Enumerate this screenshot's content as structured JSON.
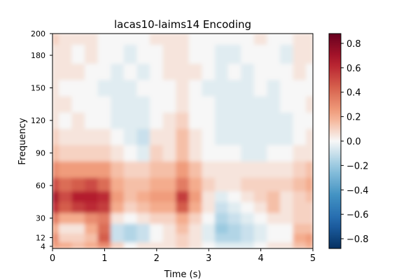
{
  "chart_data": {
    "type": "heatmap",
    "title": "lacas10-laims14 Encoding",
    "xlabel": "Time (s)",
    "ylabel": "Frequency",
    "xlim": [
      0,
      5
    ],
    "ylim": [
      2,
      200
    ],
    "x_ticks": [
      0,
      1,
      2,
      3,
      4,
      5
    ],
    "x_tick_labels": [
      "0",
      "1",
      "2",
      "3",
      "4",
      "5"
    ],
    "y_ticks": [
      4,
      12,
      30,
      60,
      90,
      120,
      150,
      180,
      200
    ],
    "y_tick_labels": [
      "4",
      "12",
      "30",
      "60",
      "90",
      "120",
      "150",
      "180",
      "200"
    ],
    "colorbar": {
      "colormap": "RdBu_r",
      "vmin": -0.88,
      "vmax": 0.88,
      "ticks": [
        -0.8,
        -0.6,
        -0.4,
        -0.2,
        0.0,
        0.2,
        0.4,
        0.6,
        0.8
      ],
      "tick_labels": [
        "−0.8",
        "−0.6",
        "−0.4",
        "−0.2",
        "0.0",
        "0.2",
        "0.4",
        "0.6",
        "0.8"
      ]
    },
    "rows_description": "approximate z values by frequency band",
    "frequencies": [
      4,
      12,
      20,
      30,
      40,
      50,
      60,
      75,
      90,
      105,
      120,
      135,
      150,
      165,
      180,
      200
    ],
    "times": [
      0.0,
      0.25,
      0.5,
      0.75,
      1.0,
      1.25,
      1.5,
      1.75,
      2.0,
      2.25,
      2.5,
      2.75,
      3.0,
      3.25,
      3.5,
      3.75,
      4.0,
      4.25,
      4.5,
      4.75,
      5.0
    ],
    "values": [
      [
        0.25,
        0.2,
        0.15,
        0.2,
        0.3,
        0.1,
        0.0,
        0.05,
        0.05,
        0.05,
        0.1,
        0.05,
        0.0,
        -0.05,
        -0.05,
        -0.05,
        0.0,
        0.05,
        0.05,
        0.15,
        0.2
      ],
      [
        0.3,
        0.1,
        0.1,
        0.15,
        0.45,
        -0.1,
        -0.15,
        -0.1,
        0.0,
        0.05,
        0.1,
        0.05,
        -0.05,
        -0.15,
        -0.15,
        -0.1,
        -0.05,
        0.0,
        0.0,
        0.2,
        0.25
      ],
      [
        0.2,
        0.05,
        0.05,
        0.2,
        0.4,
        -0.1,
        -0.15,
        -0.1,
        0.0,
        0.05,
        0.15,
        0.05,
        -0.05,
        -0.2,
        -0.15,
        -0.1,
        -0.05,
        0.0,
        0.0,
        0.15,
        0.15
      ],
      [
        0.35,
        0.2,
        0.2,
        0.3,
        0.35,
        0.05,
        0.0,
        0.05,
        0.1,
        0.1,
        0.2,
        0.1,
        0.0,
        -0.15,
        -0.1,
        -0.05,
        0.0,
        0.05,
        0.05,
        0.1,
        0.1
      ],
      [
        0.6,
        0.45,
        0.55,
        0.6,
        0.55,
        0.2,
        0.1,
        0.15,
        0.2,
        0.2,
        0.45,
        0.2,
        0.05,
        -0.1,
        -0.05,
        0.0,
        0.05,
        0.15,
        0.05,
        0.1,
        0.1
      ],
      [
        0.7,
        0.5,
        0.65,
        0.65,
        0.6,
        0.25,
        0.15,
        0.2,
        0.25,
        0.25,
        0.55,
        0.25,
        0.05,
        -0.05,
        0.0,
        0.05,
        0.1,
        0.15,
        0.05,
        0.1,
        0.15
      ],
      [
        0.5,
        0.4,
        0.45,
        0.5,
        0.4,
        0.2,
        0.15,
        0.15,
        0.2,
        0.2,
        0.35,
        0.2,
        0.1,
        0.05,
        0.05,
        0.1,
        0.1,
        0.1,
        0.1,
        0.15,
        0.2
      ],
      [
        0.3,
        0.25,
        0.25,
        0.25,
        0.25,
        0.15,
        0.1,
        0.1,
        0.15,
        0.15,
        0.25,
        0.15,
        0.05,
        0.05,
        0.05,
        0.05,
        0.05,
        0.05,
        0.05,
        0.1,
        0.15
      ],
      [
        0.15,
        0.1,
        0.1,
        0.1,
        0.1,
        0.05,
        0.0,
        -0.05,
        0.1,
        0.05,
        0.15,
        0.05,
        0.0,
        0.0,
        0.0,
        -0.05,
        -0.05,
        0.0,
        0.0,
        0.05,
        0.05
      ],
      [
        0.1,
        0.05,
        0.05,
        0.05,
        0.05,
        0.0,
        -0.05,
        -0.1,
        0.05,
        0.05,
        0.15,
        0.05,
        0.0,
        -0.05,
        -0.05,
        -0.05,
        -0.05,
        -0.05,
        -0.05,
        0.0,
        0.05
      ],
      [
        0.05,
        0.0,
        0.05,
        0.0,
        0.0,
        -0.05,
        -0.05,
        -0.05,
        0.0,
        0.05,
        0.1,
        0.0,
        0.0,
        -0.05,
        -0.05,
        -0.05,
        -0.05,
        -0.05,
        -0.05,
        0.0,
        0.0
      ],
      [
        0.05,
        0.05,
        0.0,
        0.0,
        0.0,
        -0.05,
        -0.05,
        -0.05,
        0.0,
        0.0,
        0.05,
        0.0,
        0.0,
        -0.05,
        -0.05,
        -0.05,
        -0.05,
        -0.05,
        0.0,
        0.0,
        0.05
      ],
      [
        0.05,
        0.0,
        0.0,
        0.0,
        -0.05,
        -0.05,
        -0.05,
        0.0,
        0.0,
        0.0,
        0.05,
        0.0,
        -0.05,
        -0.05,
        -0.05,
        -0.05,
        0.0,
        -0.05,
        0.0,
        0.0,
        0.0
      ],
      [
        0.05,
        0.05,
        0.05,
        0.0,
        0.0,
        -0.05,
        0.0,
        -0.05,
        0.0,
        0.05,
        0.05,
        0.05,
        0.0,
        -0.05,
        0.0,
        -0.05,
        0.0,
        0.0,
        0.0,
        0.05,
        0.0
      ],
      [
        0.05,
        0.05,
        0.0,
        0.05,
        0.0,
        0.0,
        -0.05,
        0.0,
        0.0,
        0.05,
        0.05,
        0.0,
        0.0,
        -0.05,
        -0.05,
        0.0,
        0.0,
        0.0,
        -0.05,
        0.05,
        0.05
      ],
      [
        0.1,
        0.05,
        0.05,
        0.05,
        0.0,
        0.0,
        0.0,
        0.0,
        0.05,
        0.05,
        0.05,
        0.0,
        0.0,
        0.0,
        0.0,
        0.0,
        0.05,
        0.0,
        0.0,
        0.05,
        0.05
      ]
    ]
  }
}
